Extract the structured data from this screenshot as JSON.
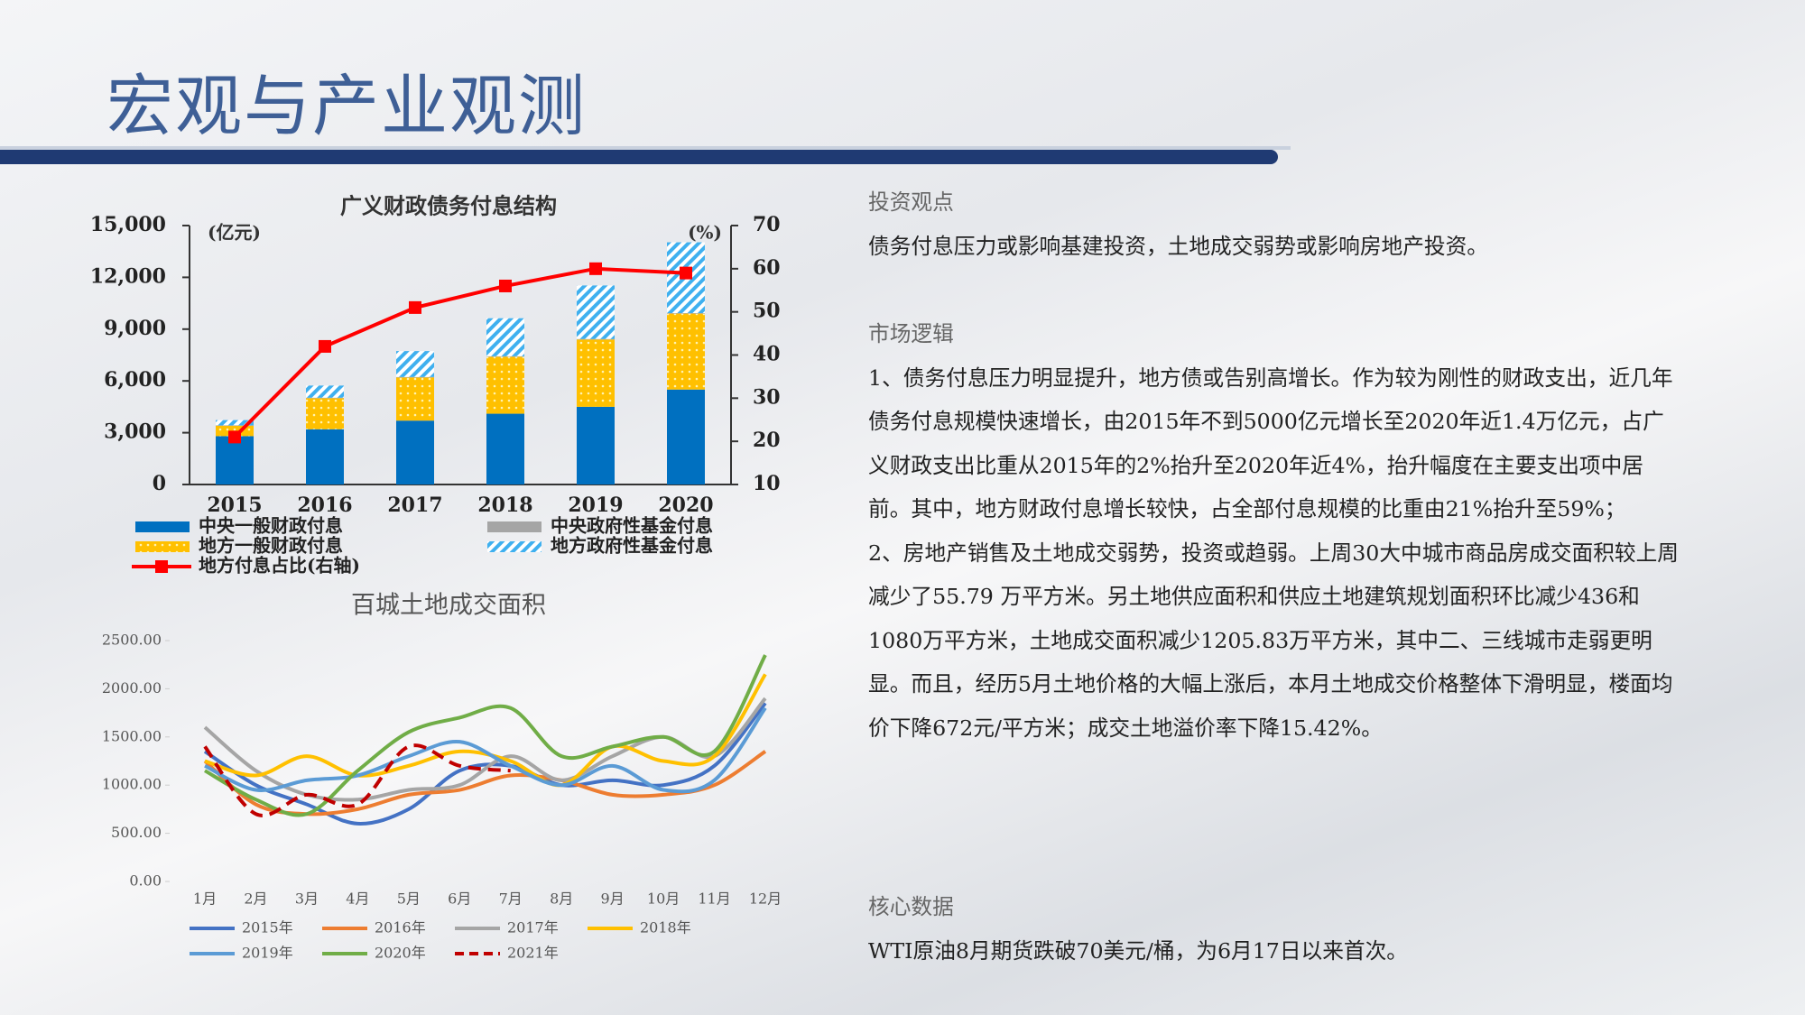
{
  "header": {
    "title": "宏观与产业观测"
  },
  "chart_data": [
    {
      "type": "bar",
      "title": "广义财政债务付息结构",
      "y_unit": "(亿元)",
      "y2_unit": "(%)",
      "categories": [
        "2015",
        "2016",
        "2017",
        "2018",
        "2019",
        "2020"
      ],
      "stacked": true,
      "series": [
        {
          "name": "中央一般财政付息",
          "color": "#0070c0",
          "values": [
            2800,
            3200,
            3700,
            4100,
            4500,
            5500
          ]
        },
        {
          "name": "地方一般财政付息",
          "color": "#ffc000",
          "pattern": "dots",
          "values": [
            600,
            1800,
            2500,
            3300,
            3900,
            4400
          ]
        },
        {
          "name": "中央政府性基金付息",
          "color": "#a5a5a5",
          "values": [
            30,
            30,
            30,
            30,
            30,
            30
          ]
        },
        {
          "name": "地方政府性基金付息",
          "color": "#3fb0ef",
          "pattern": "hatch",
          "values": [
            300,
            700,
            1500,
            2200,
            3100,
            4100
          ]
        },
        {
          "name": "地方付息占比(右轴)",
          "color": "#ff0000",
          "type": "line",
          "axis": "y2",
          "values": [
            21,
            42,
            51,
            56,
            60,
            59
          ]
        }
      ],
      "ylim": [
        0,
        15000
      ],
      "yticks": [
        0,
        {
          "value": 3000,
          "label": "3,000"
        },
        {
          "value": 6000,
          "label": "6,000"
        },
        {
          "value": 9000,
          "label": "9,000"
        },
        {
          "value": 12000,
          "label": "12,000"
        },
        {
          "value": 15000,
          "label": "15,000"
        }
      ],
      "y2lim": [
        10,
        70
      ],
      "y2ticks": [
        10,
        20,
        30,
        40,
        50,
        60,
        70
      ]
    },
    {
      "type": "line",
      "title": "百城土地成交面积",
      "categories": [
        "1月",
        "2月",
        "3月",
        "4月",
        "5月",
        "6月",
        "7月",
        "8月",
        "9月",
        "10月",
        "11月",
        "12月"
      ],
      "series": [
        {
          "name": "2015年",
          "color": "#4472c4",
          "values": [
            1350,
            1000,
            800,
            600,
            750,
            1150,
            1200,
            1000,
            1050,
            1000,
            1200,
            1850
          ]
        },
        {
          "name": "2016年",
          "color": "#ed7d31",
          "values": [
            1250,
            800,
            700,
            750,
            900,
            950,
            1100,
            1050,
            900,
            900,
            1000,
            1350
          ]
        },
        {
          "name": "2017年",
          "color": "#a5a5a5",
          "values": [
            1600,
            1150,
            900,
            850,
            950,
            1000,
            1300,
            1050,
            1300,
            1500,
            1300,
            1900
          ]
        },
        {
          "name": "2018年",
          "color": "#ffc000",
          "values": [
            1250,
            1100,
            1300,
            1100,
            1200,
            1350,
            1250,
            1000,
            1400,
            1250,
            1300,
            2150
          ]
        },
        {
          "name": "2019年",
          "color": "#5b9bd5",
          "values": [
            1200,
            950,
            1050,
            1100,
            1300,
            1450,
            1200,
            1000,
            1200,
            950,
            1050,
            1800
          ]
        },
        {
          "name": "2020年",
          "color": "#70ad47",
          "values": [
            1150,
            850,
            700,
            1150,
            1550,
            1700,
            1800,
            1300,
            1400,
            1500,
            1350,
            2350
          ]
        },
        {
          "name": "2021年",
          "color": "#c00000",
          "dash": true,
          "values": [
            1400,
            700,
            900,
            800,
            1400,
            1200,
            1150,
            null,
            null,
            null,
            null,
            null
          ]
        }
      ],
      "ylim": [
        0,
        2500
      ],
      "yticks": [
        {
          "value": 0,
          "label": "0.00"
        },
        {
          "value": 500,
          "label": "500.00"
        },
        {
          "value": 1000,
          "label": "1000.00"
        },
        {
          "value": 1500,
          "label": "1500.00"
        },
        {
          "value": 2000,
          "label": "2000.00"
        },
        {
          "value": 2500,
          "label": "2500.00"
        }
      ]
    }
  ],
  "sections": [
    {
      "heading": "投资观点",
      "paragraphs": [
        "债务付息压力或影响基建投资，土地成交弱势或影响房地产投资。"
      ]
    },
    {
      "heading": "市场逻辑",
      "paragraphs": [
        "1、债务付息压力明显提升，地方债或告别高增长。作为较为刚性的财政支出，近几年债务付息规模快速增长，由2015年不到5000亿元增长至2020年近1.4万亿元，占广义财政支出比重从2015年的2%抬升至2020年近4%，抬升幅度在主要支出项中居前。其中，地方财政付息增长较快，占全部付息规模的比重由21%抬升至59%；",
        "2、房地产销售及土地成交弱势，投资或趋弱。上周30大中城市商品房成交面积较上周减少了55.79 万平方米。另土地供应面积和供应土地建筑规划面积环比减少436和1080万平方米，土地成交面积减少1205.83万平方米，其中二、三线城市走弱更明显。而且，经历5月土地价格的大幅上涨后，本月土地成交价格整体下滑明显，楼面均价下降672元/平方米；成交土地溢价率下降15.42%。"
      ]
    },
    {
      "heading": "核心数据",
      "paragraphs": [
        "WTI原油8月期货跌破70美元/桶，为6月17日以来首次。"
      ]
    }
  ]
}
